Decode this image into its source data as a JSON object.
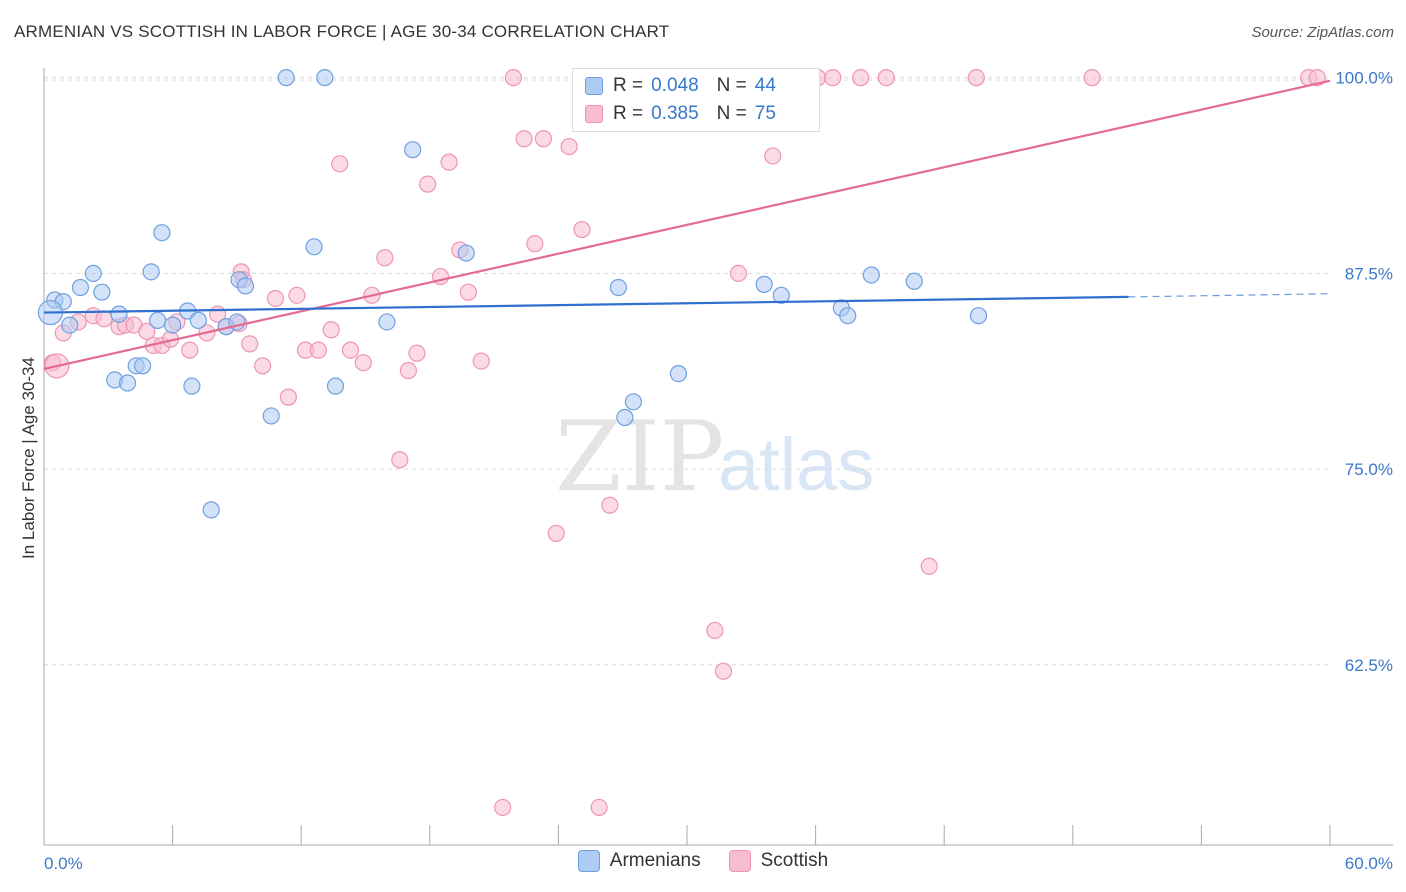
{
  "header": {
    "title": "ARMENIAN VS SCOTTISH IN LABOR FORCE | AGE 30-34 CORRELATION CHART",
    "source": "Source: ZipAtlas.com"
  },
  "watermark": {
    "zip": "ZIP",
    "atlas": "atlas"
  },
  "legend": {
    "armenians": {
      "r_label": "R =",
      "r_value": "0.048",
      "n_label": "N =",
      "n_value": "44"
    },
    "scottish": {
      "r_label": "R =",
      "r_value": "0.385",
      "n_label": "N =",
      "n_value": "75"
    }
  },
  "colors": {
    "armenian_fill": "#aecbf2",
    "armenian_stroke": "#6fa0e0",
    "armenian_line": "#2e6fd0",
    "scottish_fill": "#f7bccf",
    "scottish_stroke": "#ef94b3",
    "scottish_line": "#e36a93",
    "tick_label": "#3a78c9"
  },
  "chart_data": {
    "type": "scatter",
    "title": "ARMENIAN VS SCOTTISH IN LABOR FORCE | AGE 30-34 CORRELATION CHART",
    "xlabel": "",
    "ylabel": "In Labor Force | Age 30-34",
    "xlim": [
      0,
      60
    ],
    "ylim": [
      51,
      101
    ],
    "x_tick_labels": [
      "0.0%",
      "60.0%"
    ],
    "y_ticks": [
      62.5,
      75.0,
      87.5,
      100.0
    ],
    "y_tick_labels": [
      "62.5%",
      "75.0%",
      "87.5%",
      "100.0%"
    ],
    "grid": true,
    "legend_position": "top-center",
    "series": [
      {
        "name": "Armenians",
        "r": 0.048,
        "n": 44,
        "trend": {
          "x0": 0,
          "y0": 85.0,
          "x1": 50.6,
          "y1": 86.0,
          "dashed_to_x": 60,
          "dashed_to_y": 86.2
        },
        "points": [
          [
            0.5,
            85.8
          ],
          [
            0.9,
            85.7
          ],
          [
            1.2,
            84.2
          ],
          [
            1.7,
            86.6
          ],
          [
            2.3,
            87.5
          ],
          [
            2.7,
            86.3
          ],
          [
            3.3,
            80.7
          ],
          [
            3.5,
            84.9
          ],
          [
            3.9,
            80.5
          ],
          [
            4.3,
            81.6
          ],
          [
            4.6,
            81.6
          ],
          [
            5.0,
            87.6
          ],
          [
            5.3,
            84.5
          ],
          [
            5.5,
            90.1
          ],
          [
            6.0,
            84.2
          ],
          [
            6.7,
            85.1
          ],
          [
            6.9,
            80.3
          ],
          [
            7.2,
            84.5
          ],
          [
            7.8,
            72.4
          ],
          [
            8.5,
            84.1
          ],
          [
            9.0,
            84.4
          ],
          [
            9.1,
            87.1
          ],
          [
            9.4,
            86.7
          ],
          [
            10.6,
            78.4
          ],
          [
            11.3,
            100.0
          ],
          [
            12.6,
            89.2
          ],
          [
            13.1,
            100.0
          ],
          [
            13.6,
            80.3
          ],
          [
            16.0,
            84.4
          ],
          [
            17.2,
            95.4
          ],
          [
            19.7,
            88.8
          ],
          [
            26.8,
            86.6
          ],
          [
            27.1,
            78.3
          ],
          [
            27.5,
            79.3
          ],
          [
            29.6,
            81.1
          ],
          [
            33.6,
            86.8
          ],
          [
            34.4,
            86.1
          ],
          [
            37.2,
            85.3
          ],
          [
            37.5,
            84.8
          ],
          [
            38.6,
            87.4
          ],
          [
            40.6,
            87.0
          ],
          [
            43.6,
            84.8
          ]
        ],
        "big_point": [
          0.3,
          85.0
        ]
      },
      {
        "name": "Scottish",
        "r": 0.385,
        "n": 75,
        "trend": {
          "x0": 0,
          "y0": 81.4,
          "x1": 60,
          "y1": 99.8
        },
        "points": [
          [
            0.4,
            81.8
          ],
          [
            0.9,
            83.7
          ],
          [
            1.6,
            84.4
          ],
          [
            2.3,
            84.8
          ],
          [
            2.8,
            84.6
          ],
          [
            3.5,
            84.1
          ],
          [
            3.8,
            84.2
          ],
          [
            4.2,
            84.2
          ],
          [
            4.8,
            83.8
          ],
          [
            5.1,
            82.9
          ],
          [
            5.5,
            82.9
          ],
          [
            5.9,
            83.3
          ],
          [
            6.2,
            84.4
          ],
          [
            6.8,
            82.6
          ],
          [
            7.6,
            83.7
          ],
          [
            8.1,
            84.9
          ],
          [
            8.5,
            84.1
          ],
          [
            9.1,
            84.3
          ],
          [
            9.2,
            87.6
          ],
          [
            9.3,
            87.1
          ],
          [
            9.6,
            83.0
          ],
          [
            10.2,
            81.6
          ],
          [
            10.8,
            85.9
          ],
          [
            11.4,
            79.6
          ],
          [
            11.8,
            86.1
          ],
          [
            12.2,
            82.6
          ],
          [
            12.8,
            82.6
          ],
          [
            13.4,
            83.9
          ],
          [
            13.8,
            94.5
          ],
          [
            14.3,
            82.6
          ],
          [
            14.9,
            81.8
          ],
          [
            15.3,
            86.1
          ],
          [
            15.9,
            88.5
          ],
          [
            16.6,
            75.6
          ],
          [
            17.0,
            81.3
          ],
          [
            17.4,
            82.4
          ],
          [
            17.9,
            93.2
          ],
          [
            18.5,
            87.3
          ],
          [
            18.9,
            94.6
          ],
          [
            19.4,
            89.0
          ],
          [
            19.8,
            86.3
          ],
          [
            20.4,
            81.9
          ],
          [
            21.4,
            53.4
          ],
          [
            21.9,
            100.0
          ],
          [
            22.4,
            96.1
          ],
          [
            22.9,
            89.4
          ],
          [
            23.3,
            96.1
          ],
          [
            23.9,
            70.9
          ],
          [
            24.5,
            95.6
          ],
          [
            25.1,
            90.3
          ],
          [
            25.9,
            53.4
          ],
          [
            26.4,
            72.7
          ],
          [
            27.2,
            100.0
          ],
          [
            28.0,
            100.0
          ],
          [
            29.1,
            100.0
          ],
          [
            30.0,
            100.0
          ],
          [
            31.3,
            64.7
          ],
          [
            31.7,
            62.1
          ],
          [
            32.4,
            87.5
          ],
          [
            33.1,
            100.0
          ],
          [
            34.0,
            95.0
          ],
          [
            36.1,
            100.0
          ],
          [
            36.8,
            100.0
          ],
          [
            38.1,
            100.0
          ],
          [
            39.3,
            100.0
          ],
          [
            41.3,
            68.8
          ],
          [
            43.5,
            100.0
          ],
          [
            48.9,
            100.0
          ],
          [
            59.0,
            100.0
          ],
          [
            59.4,
            100.0
          ]
        ],
        "big_point": [
          0.6,
          81.6
        ]
      }
    ]
  },
  "bottom_legend": {
    "armenians_label": "Armenians",
    "scottish_label": "Scottish"
  }
}
